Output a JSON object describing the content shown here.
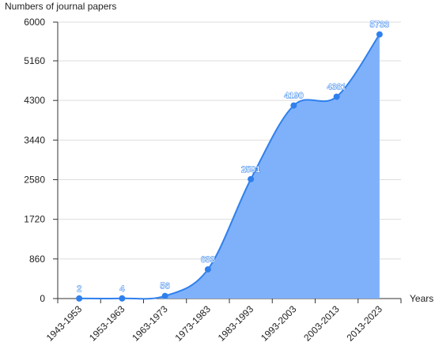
{
  "chart_data": {
    "type": "area",
    "y_label": "Numbers of journal papers",
    "x_label": "Years",
    "categories": [
      "1943-1953",
      "1953-1963",
      "1963-1973",
      "1973-1983",
      "1983-1993",
      "1993-2003",
      "2003-2013",
      "2013-2023"
    ],
    "values": [
      2,
      4,
      56,
      633,
      2591,
      4190,
      4381,
      5733
    ],
    "color": "#2f80ed",
    "fill": "#7fb1fb",
    "ylim": [
      0,
      6000
    ],
    "yticks": [
      0,
      860,
      1720,
      2580,
      3440,
      4300,
      5160,
      6000
    ],
    "grid": true
  }
}
